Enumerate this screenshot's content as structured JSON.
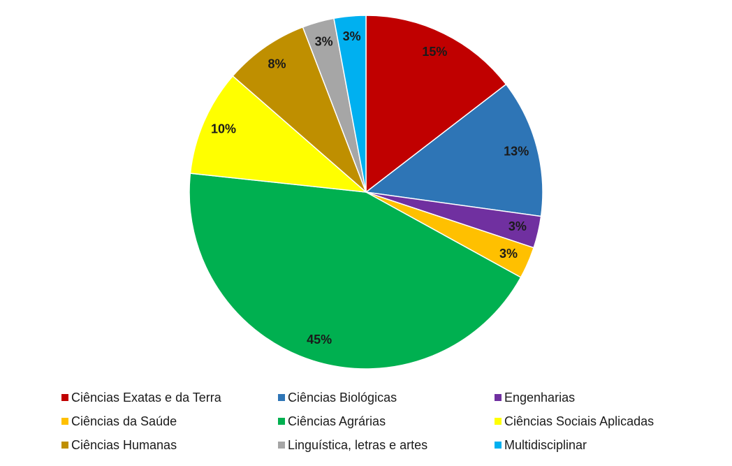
{
  "chart_data": {
    "type": "pie",
    "categories": [
      "Ciências Exatas e da Terra",
      "Ciências Biológicas",
      "Engenharias",
      "Ciências da Saúde",
      "Ciências Agrárias",
      "Ciências Sociais Aplicadas",
      "Ciências Humanas",
      "Linguística, letras e artes",
      "Multidisciplinar"
    ],
    "values": [
      15,
      13,
      3,
      3,
      45,
      10,
      8,
      3,
      3
    ],
    "value_labels": [
      "15%",
      "13%",
      "3%",
      "3%",
      "45%",
      "10%",
      "8%",
      "3%",
      "3%"
    ],
    "colors": [
      "#c00000",
      "#2e75b6",
      "#7030a0",
      "#ffc000",
      "#00b050",
      "#ffff00",
      "#bf8f00",
      "#a6a6a6",
      "#00b0f0"
    ]
  }
}
